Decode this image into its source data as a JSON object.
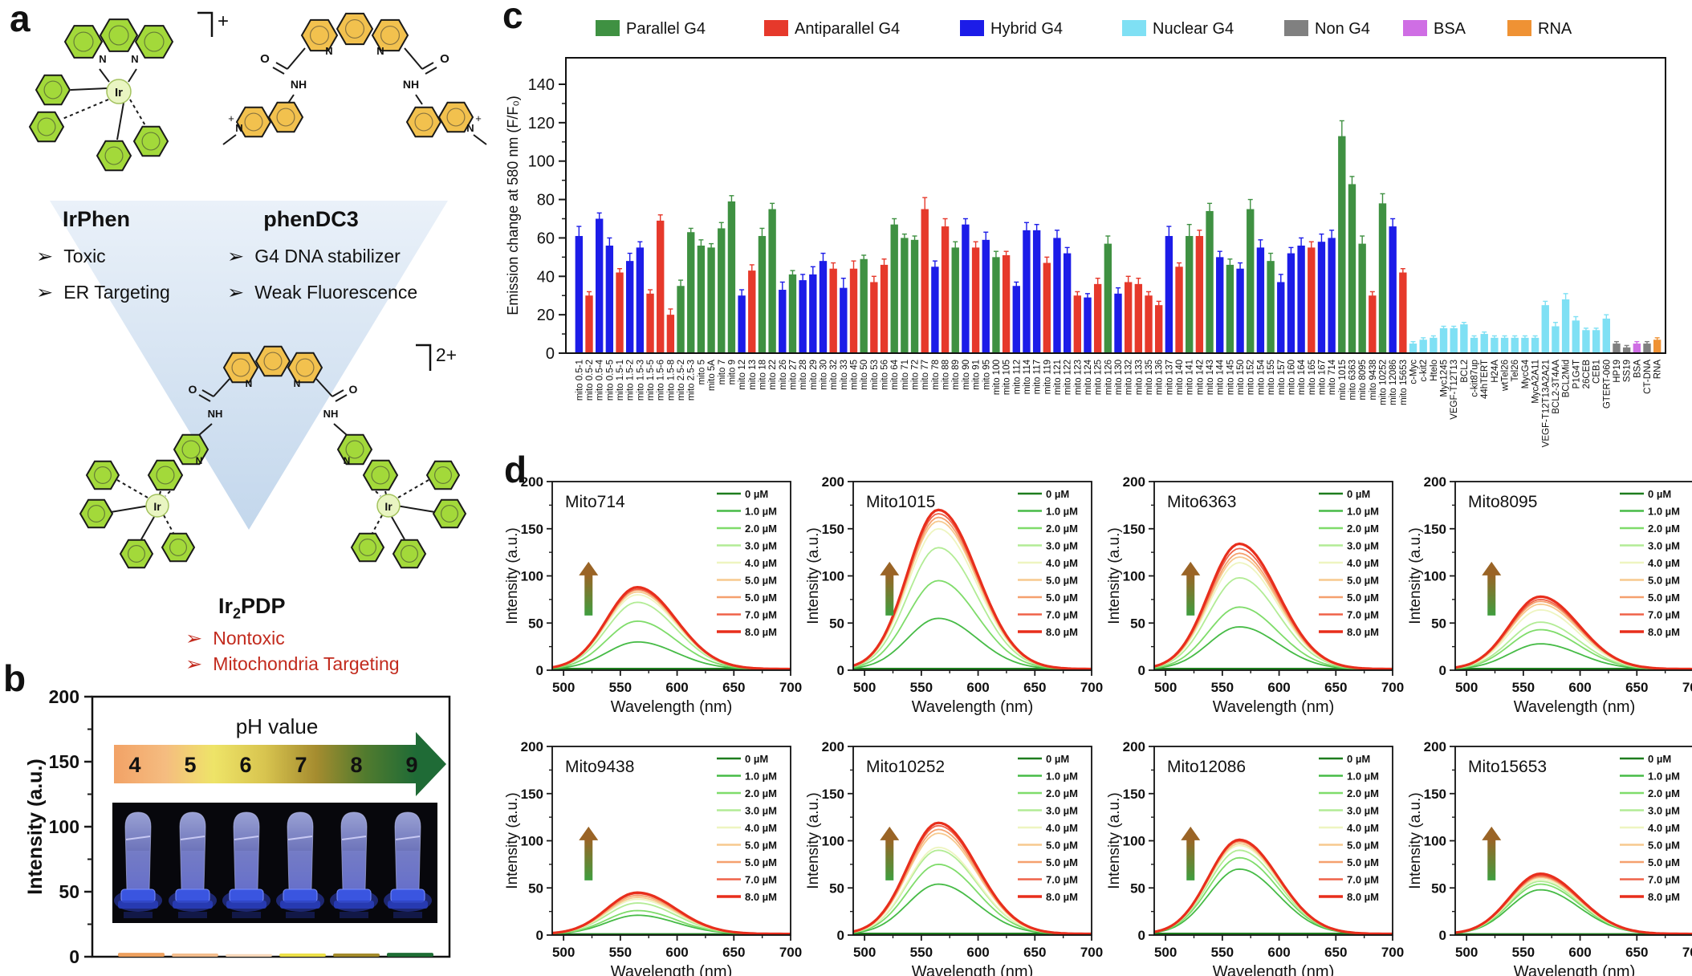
{
  "panel_a": {
    "label": "a",
    "bullet": "➢",
    "atoms": {
      "ir": "Ir",
      "n": "N",
      "nh": "NH",
      "o": "O",
      "plus": "+"
    },
    "irphen": {
      "name": "IrPhen",
      "charge": "+",
      "points": [
        "Toxic",
        "ER Targeting"
      ]
    },
    "phendc3": {
      "name": "phenDC3",
      "points": [
        "G4 DNA stabilizer",
        "Weak Fluorescence"
      ]
    },
    "ir2pdp": {
      "name_pre": "Ir",
      "name_sub": "2",
      "name_post": "PDP",
      "charge": "2+",
      "points": [
        "Nontoxic",
        "Mitochondria Targeting"
      ]
    }
  },
  "panel_b": {
    "label": "b"
  },
  "panel_c": {
    "label": "c"
  },
  "panel_d": {
    "label": "d"
  },
  "chart_data": [
    {
      "id": "g4-screen-bars",
      "panel": "c",
      "type": "bar",
      "ylabel": "Emission change at 580 nm (F/F₀)",
      "ylim": [
        0,
        150
      ],
      "yticks": [
        0,
        20,
        40,
        60,
        80,
        100,
        120,
        140
      ],
      "grid": false,
      "legend_position": "top",
      "legend_order": [
        "P",
        "A",
        "H",
        "N",
        "X",
        "B",
        "R"
      ],
      "groups": {
        "P": {
          "label": "Parallel G4",
          "color": "#3f9142"
        },
        "A": {
          "label": "Antiparallel G4",
          "color": "#e6392b"
        },
        "H": {
          "label": "Hybrid G4",
          "color": "#1c1ce8"
        },
        "N": {
          "label": "Nuclear G4",
          "color": "#7fe0f4"
        },
        "X": {
          "label": "Non G4",
          "color": "#808080"
        },
        "B": {
          "label": "BSA",
          "color": "#cf6ee4"
        },
        "R": {
          "label": "RNA",
          "color": "#ef9234"
        }
      },
      "bars": [
        [
          "mito 0.5-1",
          "H",
          61,
          5
        ],
        [
          "mito 0.5-2",
          "A",
          30,
          2
        ],
        [
          "mito 0.5-4",
          "H",
          70,
          3
        ],
        [
          "mito 0.5-5",
          "H",
          56,
          4
        ],
        [
          "mito 1.5-1",
          "A",
          42,
          2
        ],
        [
          "mito 1.5-2",
          "H",
          48,
          4
        ],
        [
          "mito 1.5-3",
          "H",
          55,
          3
        ],
        [
          "mito 1.5-5",
          "A",
          31,
          2
        ],
        [
          "mito 1.5-6",
          "A",
          69,
          3
        ],
        [
          "mito 1.5-8",
          "A",
          20,
          3
        ],
        [
          "mito 2.5-2",
          "P",
          35,
          3
        ],
        [
          "mito 2.5-3",
          "P",
          63,
          2
        ],
        [
          "mito 5",
          "P",
          56,
          3
        ],
        [
          "mito 5A",
          "P",
          55,
          2
        ],
        [
          "mito 7",
          "P",
          65,
          3
        ],
        [
          "mito 9",
          "P",
          79,
          3
        ],
        [
          "mito 12",
          "H",
          30,
          3
        ],
        [
          "mito 13",
          "A",
          43,
          3
        ],
        [
          "mito 18",
          "P",
          61,
          4
        ],
        [
          "mito 22",
          "P",
          75,
          3
        ],
        [
          "mito 26",
          "H",
          33,
          4
        ],
        [
          "mito 27",
          "P",
          41,
          2
        ],
        [
          "mito 28",
          "H",
          38,
          3
        ],
        [
          "mito 29",
          "H",
          41,
          4
        ],
        [
          "mito 30",
          "H",
          48,
          4
        ],
        [
          "mito 32",
          "A",
          44,
          3
        ],
        [
          "mito 33",
          "H",
          34,
          5
        ],
        [
          "mito 45",
          "A",
          44,
          4
        ],
        [
          "mito 50",
          "P",
          49,
          2
        ],
        [
          "mito 53",
          "A",
          37,
          3
        ],
        [
          "mito 56",
          "A",
          46,
          3
        ],
        [
          "mito 64",
          "P",
          67,
          3
        ],
        [
          "mito 71",
          "P",
          60,
          2
        ],
        [
          "mito 72",
          "P",
          59,
          2
        ],
        [
          "mito 77",
          "A",
          75,
          6
        ],
        [
          "mito 78",
          "H",
          45,
          3
        ],
        [
          "mito 88",
          "A",
          66,
          4
        ],
        [
          "mito 89",
          "P",
          55,
          3
        ],
        [
          "mito 90",
          "H",
          67,
          3
        ],
        [
          "mito 91",
          "A",
          55,
          3
        ],
        [
          "mito 95",
          "H",
          59,
          4
        ],
        [
          "mito 100",
          "P",
          50,
          3
        ],
        [
          "mito 105",
          "A",
          51,
          2
        ],
        [
          "mito 112",
          "H",
          35,
          2
        ],
        [
          "mito 114",
          "H",
          64,
          4
        ],
        [
          "mito 117",
          "H",
          64,
          3
        ],
        [
          "mito 119",
          "A",
          47,
          3
        ],
        [
          "mito 121",
          "H",
          60,
          4
        ],
        [
          "mito 122",
          "H",
          52,
          3
        ],
        [
          "mito 123",
          "A",
          30,
          2
        ],
        [
          "mito 124",
          "H",
          29,
          2
        ],
        [
          "mito 125",
          "A",
          36,
          3
        ],
        [
          "mito 126",
          "P",
          57,
          4
        ],
        [
          "mito 130",
          "H",
          31,
          3
        ],
        [
          "mito 132",
          "A",
          37,
          3
        ],
        [
          "mito 133",
          "A",
          36,
          3
        ],
        [
          "mito 135",
          "A",
          30,
          2
        ],
        [
          "mito 136",
          "A",
          25,
          2
        ],
        [
          "mito 137",
          "H",
          61,
          5
        ],
        [
          "mito 140",
          "A",
          45,
          2
        ],
        [
          "mito 141",
          "P",
          61,
          6
        ],
        [
          "mito 142",
          "A",
          61,
          3
        ],
        [
          "mito 143",
          "P",
          74,
          4
        ],
        [
          "mito 144",
          "H",
          50,
          3
        ],
        [
          "mito 145",
          "P",
          46,
          3
        ],
        [
          "mito 150",
          "H",
          44,
          3
        ],
        [
          "mito 152",
          "P",
          75,
          5
        ],
        [
          "mito 154",
          "H",
          55,
          4
        ],
        [
          "mito 155",
          "P",
          48,
          4
        ],
        [
          "mito 157",
          "H",
          37,
          4
        ],
        [
          "mito 160",
          "H",
          52,
          3
        ],
        [
          "mito 164",
          "H",
          56,
          4
        ],
        [
          "mito 165",
          "A",
          55,
          3
        ],
        [
          "mito 167",
          "H",
          58,
          4
        ],
        [
          "mito 714",
          "H",
          60,
          4
        ],
        [
          "mito 1015",
          "P",
          113,
          8
        ],
        [
          "mito 6363",
          "P",
          88,
          4
        ],
        [
          "mito 8095",
          "P",
          57,
          4
        ],
        [
          "mito 9438",
          "A",
          30,
          2
        ],
        [
          "mito 10252",
          "P",
          78,
          5
        ],
        [
          "mito 12086",
          "H",
          66,
          4
        ],
        [
          "mito 15653",
          "A",
          42,
          2
        ],
        [
          "c-Myc",
          "N",
          5,
          1
        ],
        [
          "c-kit2",
          "N",
          7,
          1
        ],
        [
          "Htelo",
          "N",
          8,
          1
        ],
        [
          "Myc1245",
          "N",
          13,
          1
        ],
        [
          "VEGF-T12T13",
          "N",
          13,
          1
        ],
        [
          "BCL2",
          "N",
          15,
          1
        ],
        [
          "c-kit87up",
          "N",
          8,
          1
        ],
        [
          "44hTERT",
          "N",
          10,
          1
        ],
        [
          "H24A",
          "N",
          8,
          1
        ],
        [
          "wtTel26",
          "N",
          8,
          1
        ],
        [
          "Tel26",
          "N",
          8,
          1
        ],
        [
          "MycG4",
          "N",
          8,
          1
        ],
        [
          "MycA2A11",
          "N",
          8,
          1
        ],
        [
          "VEGF-T12T13A2A21",
          "N",
          25,
          2
        ],
        [
          "BCL2-3T4AA",
          "N",
          14,
          2
        ],
        [
          "BCL2Mid",
          "N",
          28,
          3
        ],
        [
          "P1G4T",
          "N",
          17,
          2
        ],
        [
          "26CEB",
          "N",
          12,
          1
        ],
        [
          "CEB1",
          "N",
          12,
          1
        ],
        [
          "GTERT-060",
          "N",
          18,
          2
        ],
        [
          "HP19",
          "X",
          5,
          1
        ],
        [
          "SS19",
          "X",
          3,
          1
        ],
        [
          "BSA",
          "B",
          5,
          1
        ],
        [
          "CT-DNA",
          "X",
          5,
          1
        ],
        [
          "RNA",
          "R",
          7,
          1
        ]
      ]
    },
    {
      "id": "ph-stability",
      "panel": "b",
      "type": "line",
      "title": "pH value",
      "ylabel": "Intensity (a.u.)",
      "ylim": [
        0,
        200
      ],
      "yticks": [
        0,
        50,
        100,
        150,
        200
      ],
      "ph_labels": [
        "4",
        "5",
        "6",
        "7",
        "8",
        "9"
      ],
      "arrow_gradient": [
        "#f2a266",
        "#f5bc80",
        "#eee468",
        "#d8c44f",
        "#a58c2f",
        "#527b2e",
        "#1f6b36"
      ],
      "series": [
        {
          "name": "pH 4",
          "color": "#eda05e",
          "value": 3
        },
        {
          "name": "pH 5",
          "color": "#f3bd8d",
          "value": 2.5
        },
        {
          "name": "pH 6",
          "color": "#f8d8ba",
          "value": 2
        },
        {
          "name": "pH 7",
          "color": "#ece049",
          "value": 2.5
        },
        {
          "name": "pH 8",
          "color": "#a38b2b",
          "value": 2.5
        },
        {
          "name": "pH 9",
          "color": "#1f6e35",
          "value": 3
        }
      ]
    },
    {
      "id": "titration-spectra",
      "panel": "d",
      "type": "line",
      "xlabel": "Wavelength (nm)",
      "ylabel": "Intensity (a.u.)",
      "xlim": [
        490,
        700
      ],
      "ylim": [
        0,
        200
      ],
      "xticks": [
        500,
        550,
        600,
        650,
        700
      ],
      "yticks": [
        0,
        50,
        100,
        150,
        200
      ],
      "peak_nm": 565,
      "legend_labels": [
        "0 µM",
        "1.0 µM",
        "2.0 µM",
        "3.0 µM",
        "4.0 µM",
        "5.0 µM",
        "5.0 µM",
        "7.0 µM",
        "8.0 µM"
      ],
      "line_colors": [
        "#1e7d1e",
        "#46bb46",
        "#7fdc6a",
        "#b2ec95",
        "#eef5c0",
        "#f7c98e",
        "#f5a06e",
        "#ef6248",
        "#e82e1c"
      ],
      "subplots": [
        {
          "title": "Mito714",
          "peaks": [
            1.5,
            30,
            52,
            72,
            80,
            83,
            85,
            86,
            88
          ]
        },
        {
          "title": "Mito1015",
          "peaks": [
            1.5,
            55,
            95,
            130,
            150,
            158,
            162,
            166,
            170
          ]
        },
        {
          "title": "Mito6363",
          "peaks": [
            1.5,
            46,
            67,
            98,
            114,
            120,
            124,
            129,
            134
          ]
        },
        {
          "title": "Mito8095",
          "peaks": [
            1.5,
            28,
            43,
            51,
            64,
            70,
            73,
            75,
            78
          ]
        },
        {
          "title": "Mito9438",
          "peaks": [
            1,
            21,
            26,
            34,
            38,
            40,
            42,
            44,
            45
          ]
        },
        {
          "title": "Mito10252",
          "peaks": [
            1.5,
            54,
            75,
            90,
            93,
            108,
            112,
            116,
            119
          ]
        },
        {
          "title": "Mito12086",
          "peaks": [
            1.5,
            70,
            82,
            90,
            95,
            97,
            99,
            100,
            101
          ]
        },
        {
          "title": "Mito15653",
          "peaks": [
            1,
            48,
            54,
            57,
            59,
            61,
            62,
            63,
            65
          ]
        }
      ]
    }
  ]
}
